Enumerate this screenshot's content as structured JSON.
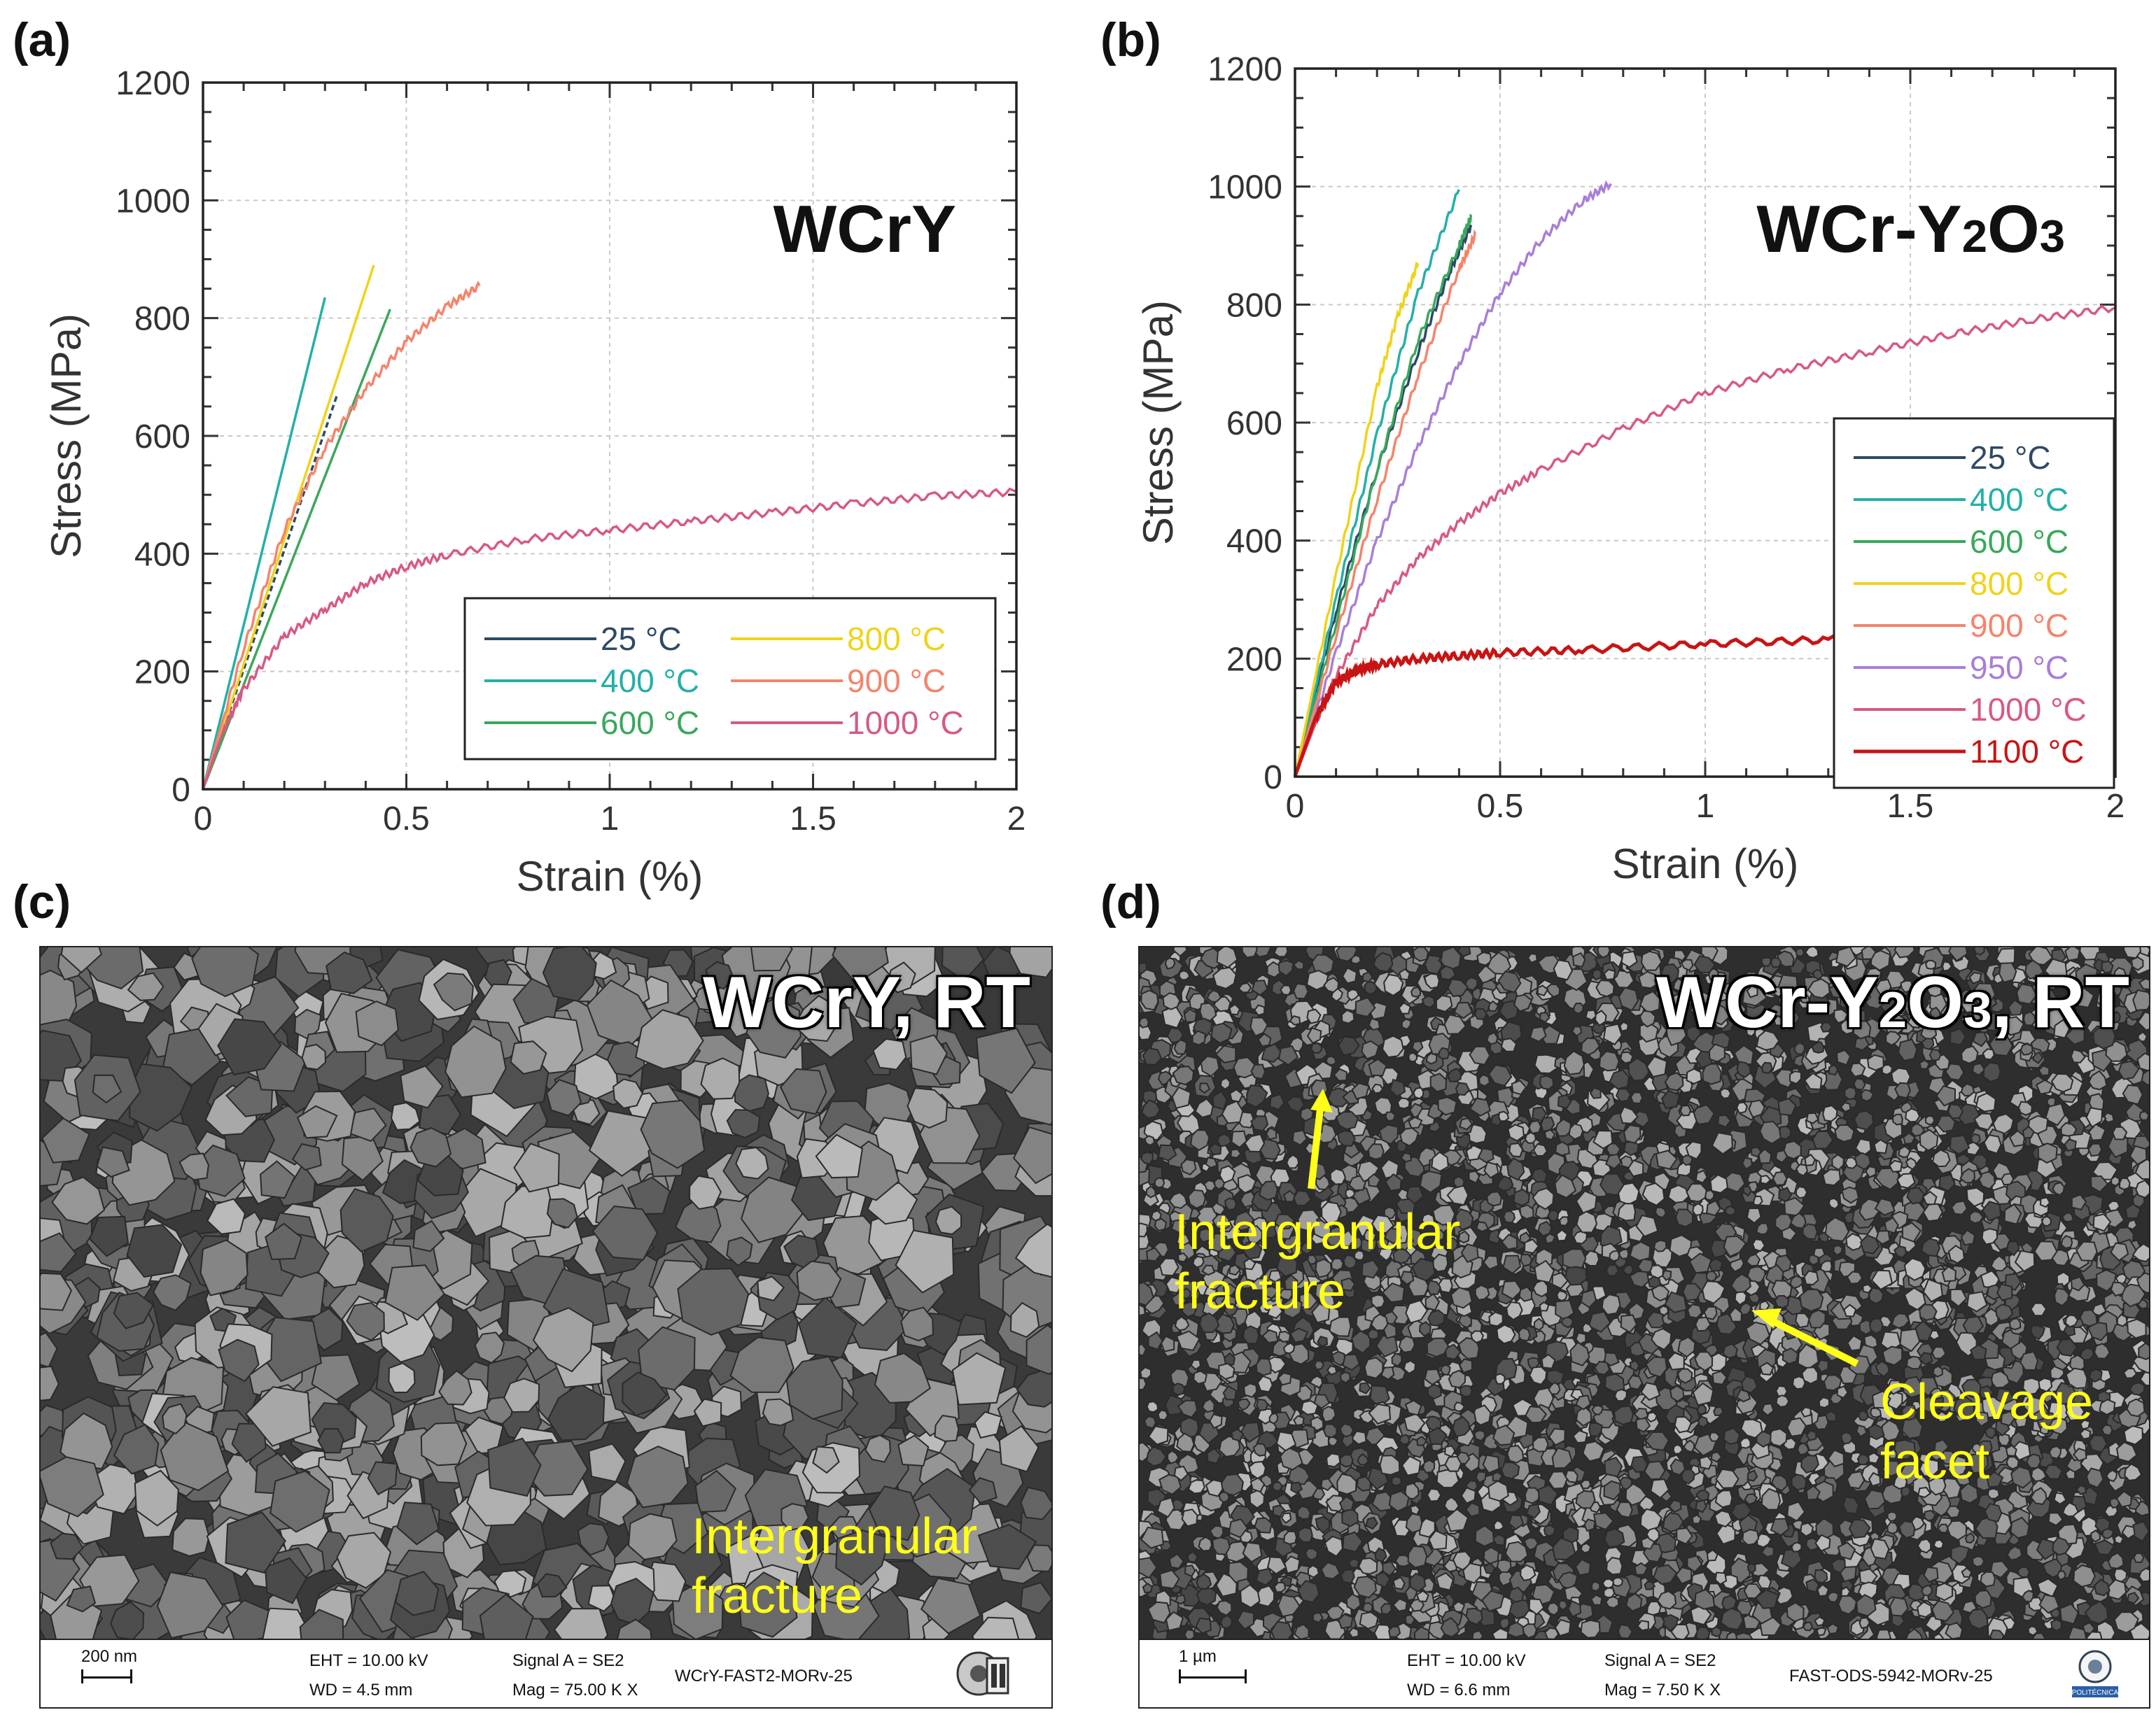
{
  "panels": {
    "a": {
      "label": "(a)"
    },
    "b": {
      "label": "(b)"
    },
    "c": {
      "label": "(c)"
    },
    "d": {
      "label": "(d)"
    }
  },
  "chart_data": [
    {
      "id": "a",
      "type": "line",
      "title": "WCrY",
      "xlabel": "Strain (%)",
      "ylabel": "Stress (MPa)",
      "xlim": [
        0,
        2
      ],
      "ylim": [
        0,
        1200
      ],
      "xticks": [
        "0",
        "0.5",
        "1",
        "1.5",
        "2"
      ],
      "yticks": [
        "0",
        "200",
        "400",
        "600",
        "800",
        "1000",
        "1200"
      ],
      "grid": true,
      "legend": "bottom-right",
      "legend_columns": 2,
      "series": [
        {
          "name": "25 °C",
          "color": "#2e4a63",
          "dashed": true,
          "x": [
            0,
            0.33
          ],
          "y": [
            0,
            670
          ]
        },
        {
          "name": "400 °C",
          "color": "#23b0a8",
          "x": [
            0,
            0.3
          ],
          "y": [
            0,
            835
          ]
        },
        {
          "name": "600 °C",
          "color": "#3aa85c",
          "x": [
            0,
            0.46
          ],
          "y": [
            0,
            815
          ]
        },
        {
          "name": "800 °C",
          "color": "#f0d31a",
          "x": [
            0,
            0.42
          ],
          "y": [
            0,
            890
          ]
        },
        {
          "name": "900 °C",
          "color": "#f4846c",
          "x": [
            0,
            0.1,
            0.2,
            0.3,
            0.4,
            0.5,
            0.6,
            0.68
          ],
          "y": [
            0,
            240,
            440,
            580,
            680,
            760,
            820,
            855
          ]
        },
        {
          "name": "1000 °C",
          "color": "#d65a82",
          "x": [
            0,
            0.05,
            0.1,
            0.2,
            0.3,
            0.4,
            0.5,
            0.6,
            0.8,
            1.0,
            1.2,
            1.4,
            1.6,
            1.8,
            2.0
          ],
          "y": [
            0,
            100,
            170,
            260,
            305,
            350,
            378,
            398,
            425,
            440,
            455,
            470,
            485,
            498,
            505
          ]
        }
      ]
    },
    {
      "id": "b",
      "type": "line",
      "title": "WCr-Y2O3",
      "xlabel": "Strain (%)",
      "ylabel": "Stress (MPa)",
      "xlim": [
        0,
        2
      ],
      "ylim": [
        0,
        1200
      ],
      "xticks": [
        "0",
        "0.5",
        "1",
        "1.5",
        "2"
      ],
      "yticks": [
        "0",
        "200",
        "400",
        "600",
        "800",
        "1000",
        "1200"
      ],
      "grid": true,
      "legend": "bottom-right",
      "legend_columns": 1,
      "series": [
        {
          "name": "25 °C",
          "color": "#2e4a63",
          "x": [
            0,
            0.1,
            0.2,
            0.3,
            0.38,
            0.43
          ],
          "y": [
            0,
            280,
            520,
            720,
            860,
            935
          ]
        },
        {
          "name": "400 °C",
          "color": "#23b0a8",
          "x": [
            0,
            0.1,
            0.2,
            0.3,
            0.4
          ],
          "y": [
            0,
            300,
            580,
            820,
            995
          ]
        },
        {
          "name": "600 °C",
          "color": "#3aa85c",
          "x": [
            0,
            0.1,
            0.2,
            0.3,
            0.4,
            0.43
          ],
          "y": [
            0,
            260,
            520,
            740,
            900,
            950
          ]
        },
        {
          "name": "800 °C",
          "color": "#f0d31a",
          "x": [
            0,
            0.1,
            0.2,
            0.25,
            0.3
          ],
          "y": [
            0,
            340,
            660,
            780,
            870
          ]
        },
        {
          "name": "900 °C",
          "color": "#f4846c",
          "x": [
            0,
            0.1,
            0.2,
            0.3,
            0.4,
            0.44
          ],
          "y": [
            0,
            240,
            470,
            680,
            860,
            920
          ]
        },
        {
          "name": "950 °C",
          "color": "#a87fd6",
          "x": [
            0,
            0.1,
            0.2,
            0.3,
            0.4,
            0.5,
            0.6,
            0.7,
            0.77
          ],
          "y": [
            0,
            210,
            400,
            560,
            700,
            820,
            910,
            975,
            1005
          ]
        },
        {
          "name": "1000 °C",
          "color": "#d65a82",
          "x": [
            0,
            0.05,
            0.1,
            0.2,
            0.3,
            0.4,
            0.5,
            0.6,
            0.8,
            1.0,
            1.2,
            1.4,
            1.6,
            1.8,
            2.0
          ],
          "y": [
            0,
            90,
            170,
            290,
            370,
            430,
            480,
            520,
            590,
            650,
            690,
            720,
            750,
            775,
            795
          ]
        },
        {
          "name": "1100 °C",
          "color": "#c81414",
          "thick": true,
          "x": [
            0,
            0.05,
            0.1,
            0.15,
            0.2,
            0.3,
            0.4,
            0.5,
            0.7,
            1.0,
            1.3,
            1.6,
            2.0
          ],
          "y": [
            0,
            100,
            160,
            180,
            190,
            200,
            205,
            210,
            215,
            225,
            232,
            238,
            245
          ]
        }
      ]
    }
  ],
  "sem_c": {
    "title": "WCrY, RT",
    "annotation_lines": [
      "Intergranular",
      "fracture"
    ],
    "scale_label": "200 nm",
    "eht": "EHT = 10.00 kV",
    "wd": "WD =  4.5 mm",
    "signal": "Signal A = SE2",
    "mag": "Mag =  75.00 K X",
    "file": "WCrY-FAST2-MORv-25",
    "logo_icon": "microscopy-logo-icon"
  },
  "sem_d": {
    "title": "WCr-Y2O3, RT",
    "annotation1_lines": [
      "Intergranular",
      "fracture"
    ],
    "annotation2_lines": [
      "Cleavage",
      "facet"
    ],
    "scale_label": "1 µm",
    "eht": "EHT = 10.00 kV",
    "wd": "WD =  6.6 mm",
    "signal": "Signal A = SE2",
    "mag": "Mag =   7.50 K X",
    "file": "FAST-ODS-5942-MORv-25",
    "logo_icon": "university-seal-icon",
    "logo_text": "POLITÉCNICA",
    "arrow_color": "#ffff1a"
  }
}
